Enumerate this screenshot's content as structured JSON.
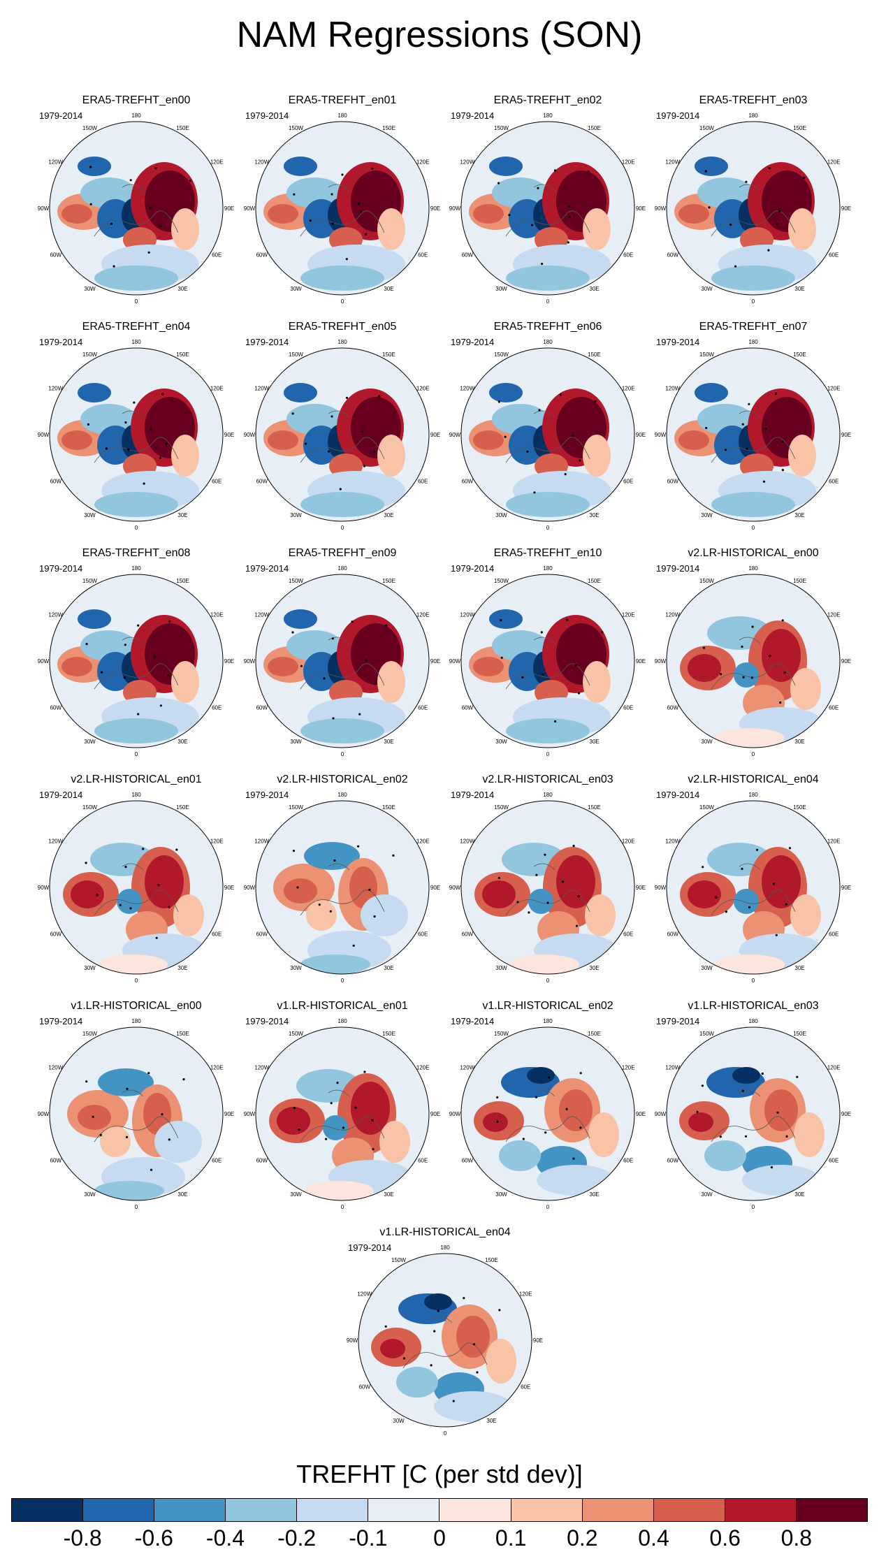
{
  "title": "NAM Regressions (SON)",
  "period": "1979-2014",
  "panels": [
    {
      "title": "ERA5-TREFHT_en00",
      "pattern": "era5"
    },
    {
      "title": "ERA5-TREFHT_en01",
      "pattern": "era5"
    },
    {
      "title": "ERA5-TREFHT_en02",
      "pattern": "era5"
    },
    {
      "title": "ERA5-TREFHT_en03",
      "pattern": "era5"
    },
    {
      "title": "ERA5-TREFHT_en04",
      "pattern": "era5"
    },
    {
      "title": "ERA5-TREFHT_en05",
      "pattern": "era5"
    },
    {
      "title": "ERA5-TREFHT_en06",
      "pattern": "era5"
    },
    {
      "title": "ERA5-TREFHT_en07",
      "pattern": "era5"
    },
    {
      "title": "ERA5-TREFHT_en08",
      "pattern": "era5"
    },
    {
      "title": "ERA5-TREFHT_en09",
      "pattern": "era5"
    },
    {
      "title": "ERA5-TREFHT_en10",
      "pattern": "era5"
    },
    {
      "title": "v2.LR-HISTORICAL_en00",
      "pattern": "model_a"
    },
    {
      "title": "v2.LR-HISTORICAL_en01",
      "pattern": "model_a"
    },
    {
      "title": "v2.LR-HISTORICAL_en02",
      "pattern": "model_b"
    },
    {
      "title": "v2.LR-HISTORICAL_en03",
      "pattern": "model_a"
    },
    {
      "title": "v2.LR-HISTORICAL_en04",
      "pattern": "model_a"
    },
    {
      "title": "v1.LR-HISTORICAL_en00",
      "pattern": "model_b"
    },
    {
      "title": "v1.LR-HISTORICAL_en01",
      "pattern": "model_a"
    },
    {
      "title": "v1.LR-HISTORICAL_en02",
      "pattern": "model_c"
    },
    {
      "title": "v1.LR-HISTORICAL_en03",
      "pattern": "model_c"
    },
    {
      "title": "v1.LR-HISTORICAL_en04",
      "pattern": "model_c"
    }
  ],
  "lon_labels": [
    "180",
    "150E",
    "120E",
    "90E",
    "60E",
    "30E",
    "0",
    "30W",
    "60W",
    "90W",
    "120W",
    "150W"
  ],
  "colorbar": {
    "title": "TREFHT [C (per std dev)]",
    "tick_labels": [
      "-0.8",
      "-0.6",
      "-0.4",
      "-0.2",
      "-0.1",
      "0",
      "0.1",
      "0.2",
      "0.4",
      "0.6",
      "0.8"
    ],
    "colors": [
      "#053061",
      "#2166ac",
      "#4393c3",
      "#92c5de",
      "#c6dbef",
      "#e7eef5",
      "#fbe5dc",
      "#f8c3a7",
      "#ea9273",
      "#d6604d",
      "#b2182b",
      "#67001f"
    ]
  }
}
